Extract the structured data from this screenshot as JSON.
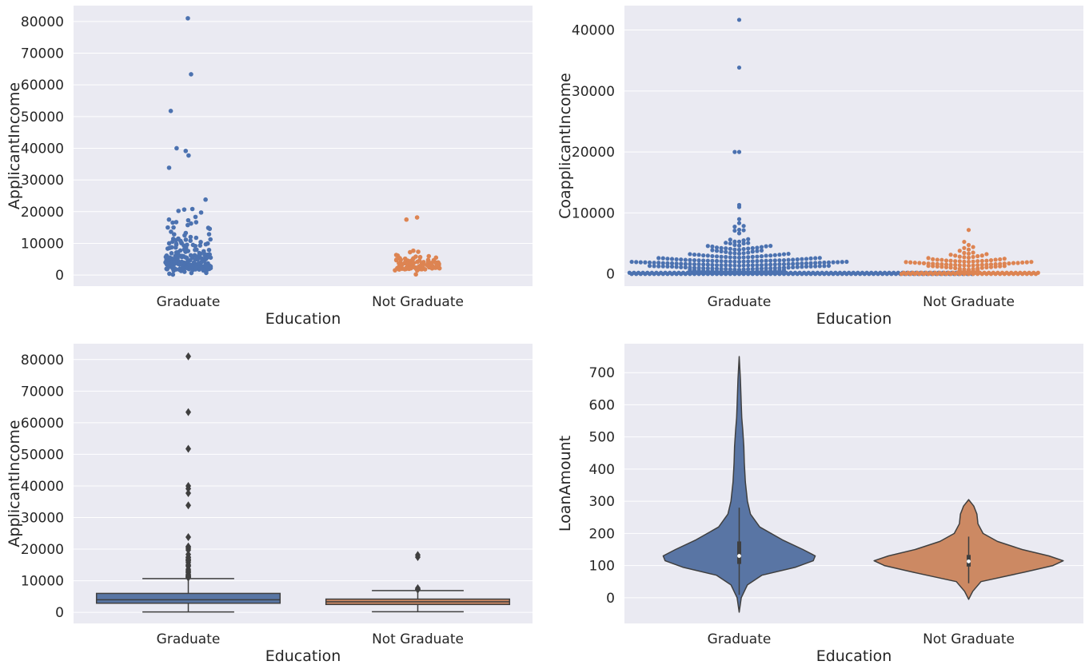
{
  "colors": {
    "graduate": "#4c72b0",
    "not_graduate": "#dd8452",
    "panel_bg": "#eaeaf2",
    "box_graduate": "#5875a4",
    "box_not_graduate": "#cc8963",
    "violin_graduate": "#5975a4",
    "violin_not_graduate": "#cc8963",
    "edge": "#3f3f3f"
  },
  "chart_data": [
    {
      "type": "scatter",
      "subtype": "strip",
      "xlabel": "Education",
      "ylabel": "ApplicantIncome",
      "categories": [
        "Graduate",
        "Not Graduate"
      ],
      "ylim": [
        -3500,
        85000
      ],
      "yticks": [
        0,
        10000,
        20000,
        30000,
        40000,
        50000,
        60000,
        70000,
        80000
      ],
      "grid": true,
      "series": [
        {
          "values": [
            81000,
            63337,
            51763,
            39999,
            39147,
            37719,
            33846,
            23803,
            20833,
            20667,
            20233,
            19730,
            18333,
            17500,
            17263,
            16692,
            16666,
            16525,
            16250,
            15759,
            15000,
            14999,
            14880,
            14583,
            13650,
            13262,
            12876,
            12841,
            12500,
            12000,
            11757,
            11500,
            11417,
            11250,
            11146,
            11000,
            10833,
            10750,
            10513,
            10408,
            10171,
            10047,
            10000,
            9963,
            9833,
            9703,
            9538,
            9508,
            9504,
            9328,
            9323,
            9167,
            8750,
            8666,
            8624,
            8566,
            8333,
            8072,
            8000,
            7933,
            7901,
            7740,
            7660,
            7583,
            7578,
            7500,
            7451,
            7333,
            7167,
            7100,
            6950,
            6875,
            6822,
            6700,
            6608,
            6500,
            6400,
            6333,
            6277,
            6250,
            6216,
            6125,
            6083,
            6045,
            6000,
            5941,
            5833,
            5821,
            5800,
            5746,
            5703,
            5677,
            5649,
            5568,
            5532,
            5500,
            5488,
            5417,
            5391,
            5333,
            5285,
            5250,
            5185,
            5166,
            5124,
            5050,
            5000,
            4950,
            4931,
            4887,
            4843,
            4817,
            4750,
            4723,
            4692,
            4666,
            4616,
            4583,
            4547,
            4492,
            4400,
            4333,
            4300,
            4283,
            4250,
            4191,
            4166,
            4124,
            4106,
            4095,
            4053,
            4000,
            3987,
            3948,
            3917,
            3900,
            3859,
            3846,
            3833,
            3800,
            3750,
            3717,
            3691,
            3667,
            3625,
            3600,
            3583,
            3539,
            3510,
            3500,
            3466,
            3418,
            3400,
            3365,
            3333,
            3316,
            3254,
            3250,
            3200,
            3167,
            3166,
            3155,
            3100,
            3073,
            3062,
            3036,
            3029,
            3000,
            2980,
            2958,
            2917,
            2900,
            2889,
            2875,
            2833,
            2799,
            2750,
            2718,
            2708,
            2666,
            2645,
            2625,
            2600,
            2583,
            2500,
            2484,
            2479,
            2425,
            2400,
            2378,
            2333,
            2281,
            2275,
            2253,
            2237,
            2214,
            2192,
            2165,
            2137,
            2130,
            2083,
            2045,
            2000,
            1963,
            1926,
            1880,
            1853,
            1828,
            1820,
            1800,
            1782,
            1759,
            1668,
            1625,
            1600,
            1500,
            1442,
            1378,
            1299,
            1025,
            674,
            645,
            416,
            150
          ]
        },
        {
          "values": [
            18165,
            17500,
            7667,
            7333,
            7200,
            6325,
            6125,
            5935,
            5815,
            5649,
            5500,
            5333,
            5266,
            5167,
            4950,
            4860,
            4800,
            4750,
            4692,
            4680,
            4583,
            4566,
            4400,
            4300,
            4242,
            4166,
            4135,
            4095,
            4000,
            3975,
            3917,
            3867,
            3846,
            3812,
            3750,
            3717,
            3675,
            3600,
            3593,
            3510,
            3500,
            3466,
            3418,
            3400,
            3358,
            3333,
            3316,
            3254,
            3200,
            3167,
            3158,
            3100,
            3083,
            3052,
            3017,
            3000,
            2947,
            2900,
            2875,
            2833,
            2787,
            2750,
            2717,
            2667,
            2653,
            2600,
            2583,
            2550,
            2500,
            2479,
            2435,
            2400,
            2383,
            2346,
            2333,
            2301,
            2281,
            2253,
            2237,
            2213,
            2192,
            2178,
            2149,
            2132,
            2101,
            2083,
            2058,
            2031,
            2014,
            2000,
            1977,
            1958,
            1930,
            1900,
            1880,
            1836,
            1830,
            1811,
            1782,
            1759,
            1500,
            1442,
            210
          ]
        }
      ]
    },
    {
      "type": "scatter",
      "subtype": "swarm",
      "xlabel": "Education",
      "ylabel": "CoapplicantIncome",
      "categories": [
        "Graduate",
        "Not Graduate"
      ],
      "ylim": [
        -2000,
        44000
      ],
      "yticks": [
        0,
        10000,
        20000,
        30000,
        40000
      ],
      "grid": true,
      "series": [
        {
          "zero_count": 210,
          "values": [
            41667,
            33837,
            20000,
            20000,
            11300,
            10968,
            8980,
            8333,
            7873,
            7750,
            7250,
            7166,
            7101,
            6666,
            5701,
            5625,
            5500,
            5302,
            5296,
            5105,
            5064,
            5000,
            4997,
            4750,
            4648,
            4600,
            4583,
            4538,
            4486,
            4416,
            4333,
            4300,
            4250,
            4232,
            4196,
            4167,
            4114,
            4083,
            4000,
            3966,
            3890,
            3850,
            3800,
            3750,
            3700,
            3666,
            3600,
            3500,
            3440,
            3416,
            3400,
            3336,
            3300,
            3250,
            3237,
            3167,
            3150,
            3136,
            3083,
            3033,
            3021,
            3000,
            2985,
            2925,
            2900,
            2875,
            2840,
            2816,
            2800,
            2785,
            2750,
            2739,
            2717,
            2700,
            2667,
            2625,
            2600,
            2583,
            2569,
            2541,
            2500,
            2466,
            2451,
            2429,
            2400,
            2383,
            2367,
            2333,
            2304,
            2292,
            2275,
            2254,
            2250,
            2231,
            2223,
            2210,
            2200,
            2188,
            2166,
            2157,
            2142,
            2138,
            2125,
            2115,
            2100,
            2083,
            2064,
            2054,
            2042,
            2033,
            2014,
            2000,
            1993,
            1987,
            1964,
            1950,
            1929,
            1917,
            1911,
            1900,
            1881,
            1875,
            1863,
            1843,
            1840,
            1833,
            1800,
            1779,
            1769,
            1750,
            1742,
            1733,
            1717,
            1700,
            1695,
            1667,
            1655,
            1640,
            1625,
            1619,
            1600,
            1590,
            1587,
            1583,
            1560,
            1550,
            1535,
            1521,
            1500,
            1483,
            1459,
            1451,
            1447,
            1438,
            1430,
            1425,
            1411,
            1400,
            1387,
            1376,
            1350,
            1330,
            1320,
            1300,
            1287,
            1283,
            1260,
            1255,
            1250,
            1231,
            1220,
            1210,
            1200,
            1167,
            1150,
            1126,
            1100,
            1087,
            1083,
            1042,
            1033,
            1030,
            1000,
            983,
            985,
            966,
            950,
            944,
            925,
            913,
            900,
            886,
            870,
            854,
            834,
            826,
            800,
            780,
            754,
            736,
            700,
            690,
            674,
            647,
            600,
            570,
            540,
            509,
            497,
            471,
            461,
            451,
            439,
            416,
            413,
            393,
            377,
            333,
            287,
            254,
            240,
            242,
            230,
            189
          ]
        },
        {
          "zero_count": 63,
          "values": [
            7210,
            5266,
            4750,
            4416,
            4250,
            4000,
            3800,
            3500,
            3442,
            3333,
            3250,
            3150,
            3013,
            3000,
            2916,
            2833,
            2792,
            2750,
            2667,
            2600,
            2500,
            2417,
            2400,
            2336,
            2333,
            2300,
            2250,
            2200,
            2167,
            2158,
            2134,
            2100,
            2083,
            2035,
            2014,
            2000,
            1973,
            1950,
            1917,
            1900,
            1875,
            1843,
            1800,
            1783,
            1750,
            1717,
            1700,
            1667,
            1640,
            1625,
            1600,
            1587,
            1560,
            1541,
            1508,
            1500,
            1483,
            1451,
            1430,
            1400,
            1350,
            1320,
            1300,
            1280,
            1250,
            1229,
            1200,
            1167,
            1125,
            1100,
            1083,
            1050,
            1000,
            950,
            900,
            850,
            800,
            750,
            700,
            650,
            600,
            550,
            500,
            450,
            2100,
            1800,
            1700,
            1500,
            1400
          ]
        }
      ]
    },
    {
      "type": "box",
      "xlabel": "Education",
      "ylabel": "ApplicantIncome",
      "categories": [
        "Graduate",
        "Not Graduate"
      ],
      "ylim": [
        -3500,
        85000
      ],
      "yticks": [
        0,
        10000,
        20000,
        30000,
        40000,
        50000,
        60000,
        70000,
        80000
      ],
      "grid": true,
      "series": [
        {
          "whisker_low": 150,
          "q1": 2900,
          "median": 4000,
          "q3": 6000,
          "whisker_high": 10700,
          "outliers": [
            81000,
            63337,
            51763,
            39999,
            39147,
            37719,
            33846,
            23803,
            20833,
            20667,
            20233,
            19730,
            18333,
            17500,
            17263,
            16692,
            16666,
            16525,
            16250,
            15759,
            15000,
            14999,
            14880,
            14583,
            13650,
            13262,
            12876,
            12841,
            12500,
            12000,
            11757,
            11500,
            11417,
            11250,
            11146,
            11000
          ]
        },
        {
          "whisker_low": 210,
          "q1": 2500,
          "median": 3350,
          "q3": 4200,
          "whisker_high": 6900,
          "outliers": [
            18165,
            17500,
            7667,
            7333,
            7200
          ]
        }
      ]
    },
    {
      "type": "violin",
      "xlabel": "Education",
      "ylabel": "LoanAmount",
      "categories": [
        "Graduate",
        "Not Graduate"
      ],
      "ylim": [
        -80,
        790
      ],
      "yticks": [
        0,
        100,
        200,
        300,
        400,
        500,
        600,
        700
      ],
      "grid": true,
      "series": [
        {
          "min": -45,
          "max": 750,
          "whisker_low": 9,
          "q1": 105,
          "median": 130,
          "q3": 175,
          "whisker_high": 280
        },
        {
          "min": -5,
          "max": 305,
          "whisker_low": 45,
          "q1": 97,
          "median": 113,
          "q3": 133,
          "whisker_high": 190
        }
      ]
    }
  ]
}
